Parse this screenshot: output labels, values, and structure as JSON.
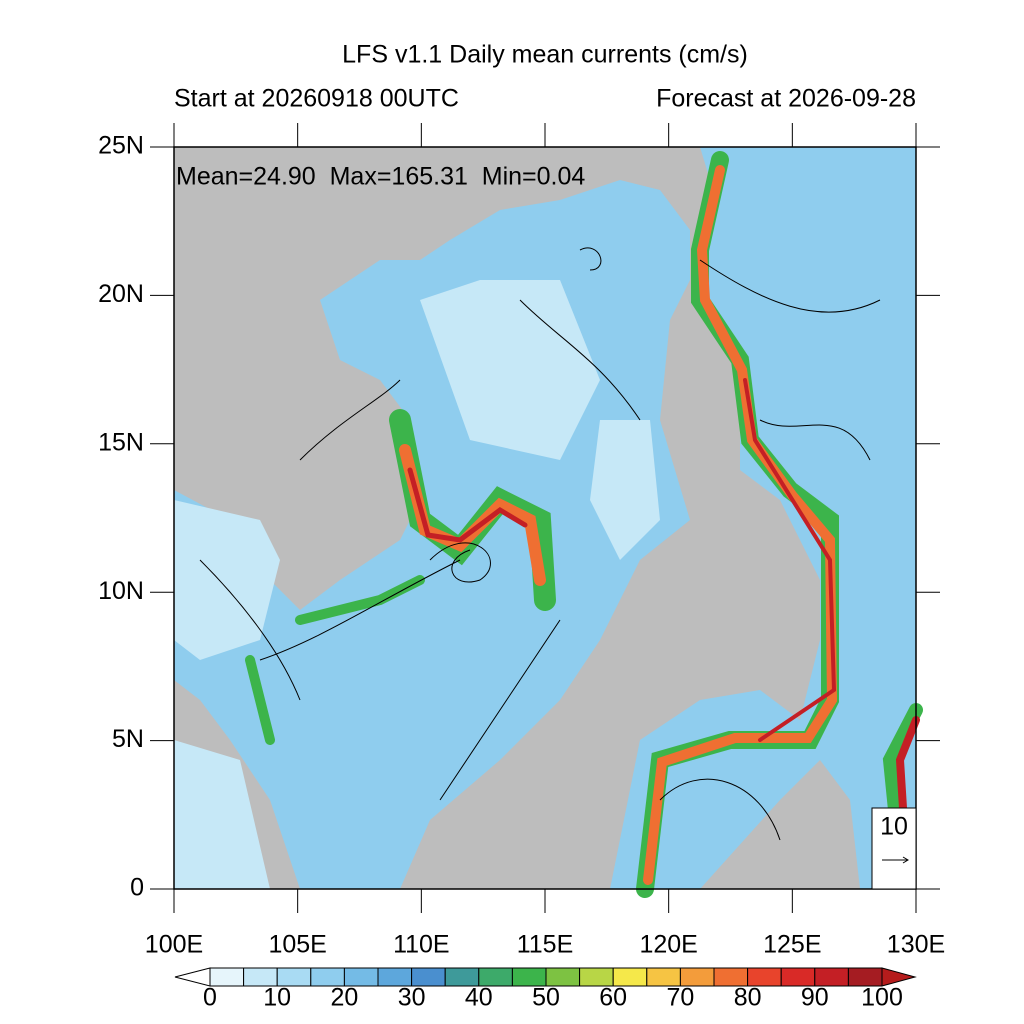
{
  "title": "LFS v1.1 Daily mean currents (cm/s)",
  "start": "Start at 20260918 00UTC",
  "forecast": "Forecast at 2026-09-28",
  "stats": "Mean=24.90  Max=165.31  Min=0.04",
  "xlim": [
    100,
    130
  ],
  "ylim": [
    0,
    25
  ],
  "xticks": [
    {
      "value": 100,
      "label": "100E"
    },
    {
      "value": 105,
      "label": "105E"
    },
    {
      "value": 110,
      "label": "110E"
    },
    {
      "value": 115,
      "label": "115E"
    },
    {
      "value": 120,
      "label": "120E"
    },
    {
      "value": 125,
      "label": "125E"
    },
    {
      "value": 130,
      "label": "130E"
    }
  ],
  "yticks": [
    {
      "value": 0,
      "label": "0"
    },
    {
      "value": 5,
      "label": "5N"
    },
    {
      "value": 10,
      "label": "10N"
    },
    {
      "value": 15,
      "label": "15N"
    },
    {
      "value": 20,
      "label": "20N"
    },
    {
      "value": 25,
      "label": "25N"
    }
  ],
  "reference_vector": 10,
  "colorbar": {
    "ticks": [
      0,
      10,
      20,
      30,
      40,
      50,
      60,
      70,
      80,
      90,
      100
    ],
    "colors": [
      "#e6f5fb",
      "#c6e8f7",
      "#a9dbf3",
      "#8fcdee",
      "#74bbe6",
      "#5da7dc",
      "#4a8fcf",
      "#3e9a9a",
      "#3daa6a",
      "#3cb44b",
      "#7dc242",
      "#b8d646",
      "#f5e84a",
      "#f6c443",
      "#f39c3b",
      "#ef6f32",
      "#e8442c",
      "#d92a27",
      "#c41f25",
      "#a51c22"
    ],
    "under_color": "#ffffff",
    "over_color": "#b51c1c"
  }
}
